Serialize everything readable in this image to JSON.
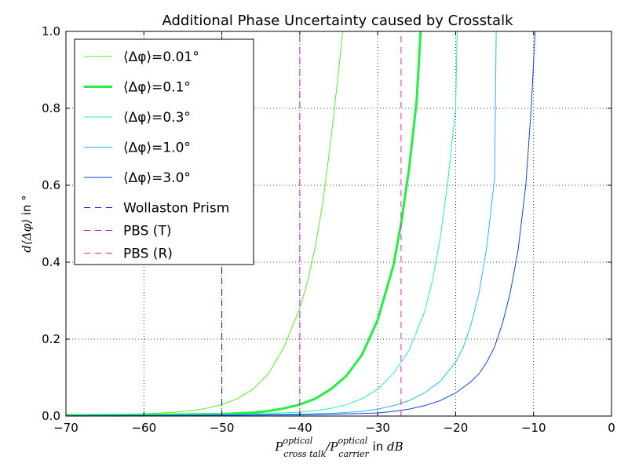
{
  "chart_data": {
    "type": "line",
    "title": "Additional Phase Uncertainty caused by Crosstalk",
    "xlabel": "P_{cross talk}^{optical} / P_{carrier}^{optical} in dB",
    "ylabel": "d⟨Δφ⟩ in °",
    "xlim": [
      -70,
      0
    ],
    "ylim": [
      0.0,
      1.0
    ],
    "x_ticks": [
      "−70",
      "−60",
      "−50",
      "−40",
      "−30",
      "−20",
      "−10",
      "0"
    ],
    "y_ticks": [
      "0.0",
      "0.2",
      "0.4",
      "0.6",
      "0.8",
      "1.0"
    ],
    "grid": true,
    "legend_position": "top-left",
    "series": [
      {
        "name": "⟨Δφ⟩=0.01°",
        "color": "#55ee22",
        "width": 1,
        "dash": "solid",
        "x": [
          -70,
          -65,
          -60,
          -56,
          -54,
          -52,
          -50,
          -48,
          -46,
          -44,
          -42,
          -40,
          -39,
          -38,
          -37,
          -36,
          -35,
          -34.5
        ],
        "y": [
          0.003,
          0.004,
          0.006,
          0.01,
          0.014,
          0.02,
          0.03,
          0.045,
          0.07,
          0.11,
          0.18,
          0.28,
          0.35,
          0.44,
          0.56,
          0.72,
          0.9,
          1.0
        ]
      },
      {
        "name": "⟨Δφ⟩=0.1°",
        "color": "#22ee44",
        "width": 3,
        "dash": "solid",
        "x": [
          -70,
          -60,
          -50,
          -46,
          -44,
          -42,
          -40,
          -38,
          -36,
          -34,
          -32,
          -30,
          -28,
          -27,
          -26,
          -25,
          -24.5
        ],
        "y": [
          0.002,
          0.003,
          0.005,
          0.009,
          0.013,
          0.02,
          0.03,
          0.045,
          0.07,
          0.105,
          0.16,
          0.25,
          0.39,
          0.5,
          0.64,
          0.82,
          1.0
        ]
      },
      {
        "name": "⟨Δφ⟩=0.3°",
        "color": "#22eebb",
        "width": 1,
        "dash": "solid",
        "x": [
          -70,
          -60,
          -50,
          -45,
          -40,
          -38,
          -36,
          -34,
          -32,
          -30,
          -28,
          -26,
          -24,
          -23,
          -22,
          -21,
          -20,
          -19.8
        ],
        "y": [
          0.001,
          0.002,
          0.004,
          0.006,
          0.01,
          0.014,
          0.02,
          0.03,
          0.045,
          0.07,
          0.11,
          0.17,
          0.27,
          0.35,
          0.46,
          0.61,
          0.8,
          1.0
        ]
      },
      {
        "name": "⟨Δφ⟩=1.0°",
        "color": "#22bbee",
        "width": 1,
        "dash": "solid",
        "x": [
          -70,
          -60,
          -50,
          -40,
          -36,
          -32,
          -30,
          -28,
          -26,
          -24,
          -22,
          -20,
          -19,
          -18,
          -17,
          -16,
          -15,
          -14.8
        ],
        "y": [
          0.001,
          0.002,
          0.003,
          0.005,
          0.007,
          0.012,
          0.018,
          0.027,
          0.04,
          0.06,
          0.09,
          0.14,
          0.18,
          0.24,
          0.32,
          0.44,
          0.62,
          1.0
        ]
      },
      {
        "name": "⟨Δφ⟩=3.0°",
        "color": "#1144dd",
        "width": 1,
        "dash": "solid",
        "x": [
          -70,
          -60,
          -50,
          -40,
          -35,
          -30,
          -28,
          -26,
          -24,
          -22,
          -20,
          -18,
          -17,
          -16,
          -15,
          -14,
          -13,
          -12,
          -11,
          -10.3,
          -9.8
        ],
        "y": [
          0.0005,
          0.001,
          0.002,
          0.003,
          0.005,
          0.008,
          0.012,
          0.018,
          0.027,
          0.04,
          0.06,
          0.09,
          0.11,
          0.14,
          0.18,
          0.24,
          0.32,
          0.43,
          0.6,
          0.8,
          1.0
        ]
      },
      {
        "name": "Wollaston Prism",
        "color": "#1111cc",
        "width": 1,
        "dash": "dashed",
        "x": [
          -50,
          -50
        ],
        "y": [
          0,
          1
        ]
      },
      {
        "name": "PBS (T)",
        "color": "#bb11cc",
        "width": 1,
        "dash": "dashed",
        "x": [
          -40,
          -40
        ],
        "y": [
          0,
          1
        ]
      },
      {
        "name": "PBS (R)",
        "color": "#ee22aa",
        "width": 1,
        "dash": "dashed",
        "x": [
          -27,
          -27
        ],
        "y": [
          0,
          1
        ]
      }
    ]
  }
}
